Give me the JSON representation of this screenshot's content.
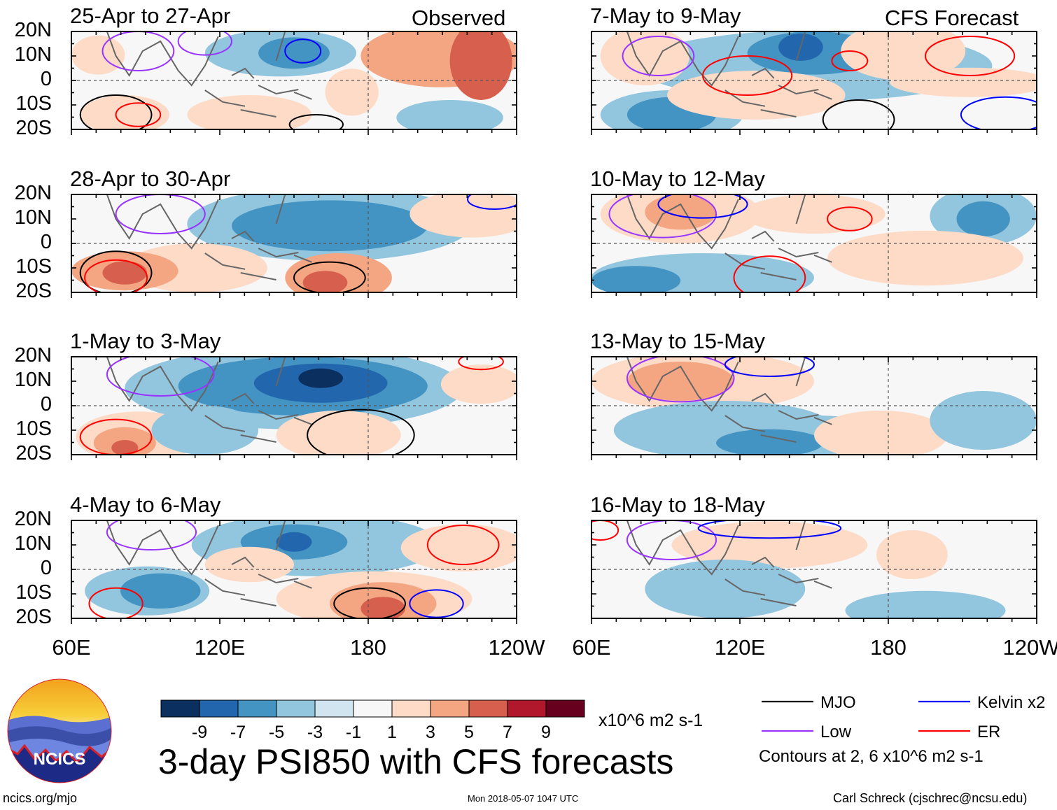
{
  "labels": {
    "observed": "Observed",
    "forecast": "CFS Forecast",
    "main_title": "3-day PSI850 with CFS forecasts",
    "units": "x10^6 m2 s-1",
    "contour_note": "Contours at 2, 6 x10^6 m2 s-1",
    "footer_left": "ncics.org/mjo",
    "footer_center": "Mon 2018-05-07 1047 UTC",
    "footer_right": "Carl Schreck (cjschrec@ncsu.edu)",
    "logo_text": "NCICS"
  },
  "chart_data": {
    "type": "heatmap",
    "title": "3-day PSI850 with CFS forecasts",
    "variable": "850-hPa streamfunction anomaly",
    "units": "x10^6 m2 s-1",
    "lat_ticks": [
      "20N",
      "10N",
      "0",
      "10S",
      "20S"
    ],
    "lon_ticks": [
      "60E",
      "120E",
      "180",
      "120W"
    ],
    "lat_range": [
      -20,
      20
    ],
    "lon_range": [
      60,
      240
    ],
    "colorbar": {
      "ticks": [
        "-9",
        "-7",
        "-5",
        "-3",
        "-1",
        "1",
        "3",
        "5",
        "7",
        "9"
      ],
      "colors": [
        "#0b2f5f",
        "#2266ad",
        "#4393c3",
        "#92c5de",
        "#d1e5f0",
        "#f7f7f7",
        "#fddbc7",
        "#f4a582",
        "#d6604d",
        "#b2182b",
        "#67001f"
      ]
    },
    "contour_legend": [
      {
        "name": "MJO",
        "color": "#000000"
      },
      {
        "name": "Kelvin x2",
        "color": "#0000ff"
      },
      {
        "name": "Low",
        "color": "#9933ff"
      },
      {
        "name": "ER",
        "color": "#ff0000"
      }
    ],
    "panels": [
      {
        "title": "25-Apr to 27-Apr",
        "source": "Observed"
      },
      {
        "title": "28-Apr to 30-Apr",
        "source": "Observed"
      },
      {
        "title": "1-May to 3-May",
        "source": "Observed"
      },
      {
        "title": "4-May to 6-May",
        "source": "Observed"
      },
      {
        "title": "7-May to 9-May",
        "source": "CFS Forecast"
      },
      {
        "title": "10-May to 12-May",
        "source": "CFS Forecast"
      },
      {
        "title": "13-May to 15-May",
        "source": "CFS Forecast"
      },
      {
        "title": "16-May to 18-May",
        "source": "CFS Forecast"
      }
    ]
  }
}
